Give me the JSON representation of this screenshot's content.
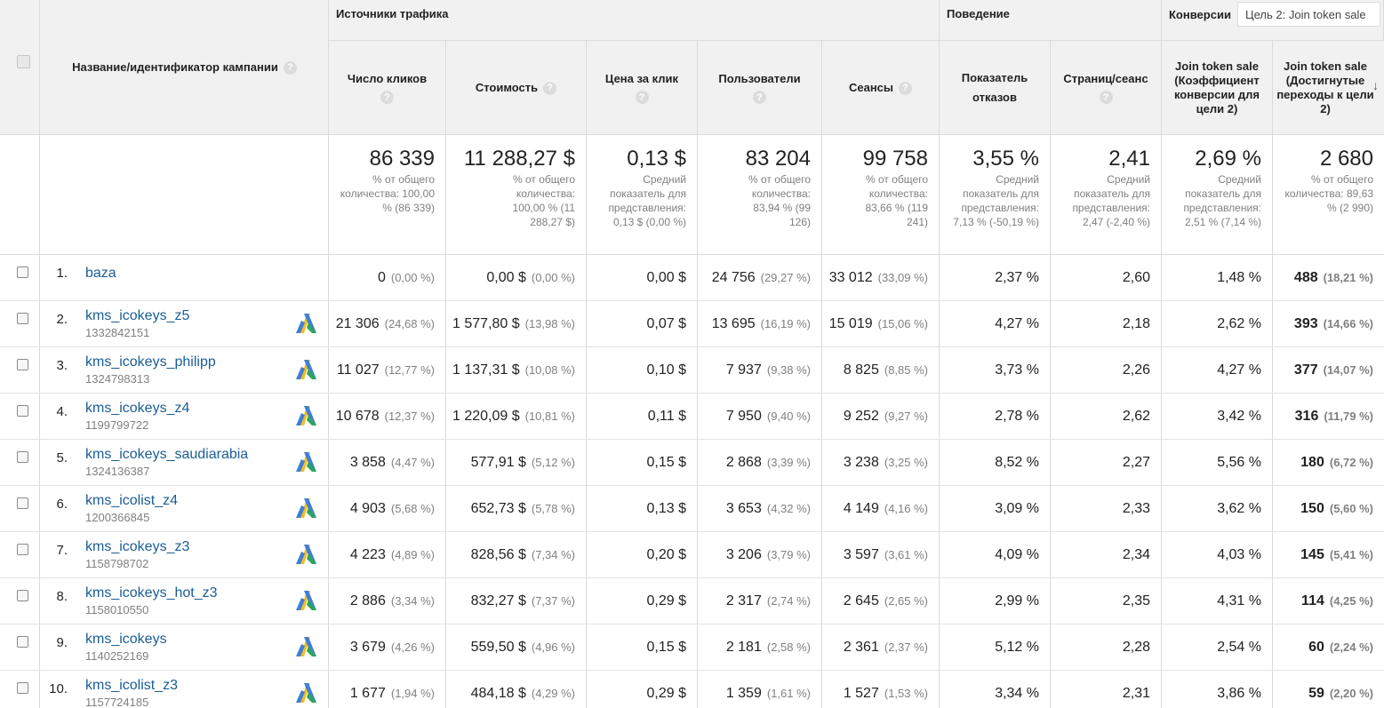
{
  "header": {
    "group_traffic": "Источники трафика",
    "group_behavior": "Поведение",
    "group_conversions": "Конверсии",
    "goal_select": "Цель 2: Join token sale",
    "help_glyph": "?",
    "sort_glyph": "↓",
    "columns": {
      "campaign": "Название/идентификатор кампании",
      "clicks": "Число кликов",
      "cost": "Стоимость",
      "cpc": "Цена за клик",
      "users": "Пользователи",
      "sessions": "Сеансы",
      "bounce": "Показатель отказов",
      "pages": "Страниц/сеанс",
      "conv_rate": "Join token sale (Коэффициент конверсии для цели 2)",
      "completions_a": "Join token sale",
      "completions_b": "(Достигнутые переходы к цели 2)"
    }
  },
  "totals": {
    "clicks": {
      "value": "86 339",
      "sub": "% от общего количества: 100,00 % (86 339)"
    },
    "cost": {
      "value": "11 288,27 $",
      "sub": "% от общего количества: 100,00 % (11 288,27 $)"
    },
    "cpc": {
      "value": "0,13 $",
      "sub": "Средний показатель для представления: 0,13 $ (0,00 %)"
    },
    "users": {
      "value": "83 204",
      "sub": "% от общего количества: 83,94 % (99 126)"
    },
    "sessions": {
      "value": "99 758",
      "sub": "% от общего количества: 83,66 % (119 241)"
    },
    "bounce": {
      "value": "3,55 %",
      "sub": "Средний показатель для представления: 7,13 % (-50,19 %)"
    },
    "pages": {
      "value": "2,41",
      "sub": "Средний показатель для представления: 2,47 (-2,40 %)"
    },
    "conv_rate": {
      "value": "2,69 %",
      "sub": "Средний показатель для представления: 2,51 % (7,14 %)"
    },
    "completions": {
      "value": "2 680",
      "sub": "% от общего количества: 89,63 % (2 990)"
    }
  },
  "rows": [
    {
      "num": "1.",
      "name": "baza",
      "id": "",
      "clicks": "0",
      "clicks_pct": "(0,00 %)",
      "cost": "0,00 $",
      "cost_pct": "(0,00 %)",
      "cpc": "0,00 $",
      "users": "24 756",
      "users_pct": "(29,27 %)",
      "sessions": "33 012",
      "sessions_pct": "(33,09 %)",
      "bounce": "2,37 %",
      "pages": "2,60",
      "conv": "1,48 %",
      "comp": "488",
      "comp_pct": "(18,21 %)",
      "ads": false
    },
    {
      "num": "2.",
      "name": "kms_icokeys_z5",
      "id": "1332842151",
      "clicks": "21 306",
      "clicks_pct": "(24,68 %)",
      "cost": "1 577,80 $",
      "cost_pct": "(13,98 %)",
      "cpc": "0,07 $",
      "users": "13 695",
      "users_pct": "(16,19 %)",
      "sessions": "15 019",
      "sessions_pct": "(15,06 %)",
      "bounce": "4,27 %",
      "pages": "2,18",
      "conv": "2,62 %",
      "comp": "393",
      "comp_pct": "(14,66 %)",
      "ads": true
    },
    {
      "num": "3.",
      "name": "kms_icokeys_philipp",
      "id": "1324798313",
      "clicks": "11 027",
      "clicks_pct": "(12,77 %)",
      "cost": "1 137,31 $",
      "cost_pct": "(10,08 %)",
      "cpc": "0,10 $",
      "users": "7 937",
      "users_pct": "(9,38 %)",
      "sessions": "8 825",
      "sessions_pct": "(8,85 %)",
      "bounce": "3,73 %",
      "pages": "2,26",
      "conv": "4,27 %",
      "comp": "377",
      "comp_pct": "(14,07 %)",
      "ads": true
    },
    {
      "num": "4.",
      "name": "kms_icokeys_z4",
      "id": "1199799722",
      "clicks": "10 678",
      "clicks_pct": "(12,37 %)",
      "cost": "1 220,09 $",
      "cost_pct": "(10,81 %)",
      "cpc": "0,11 $",
      "users": "7 950",
      "users_pct": "(9,40 %)",
      "sessions": "9 252",
      "sessions_pct": "(9,27 %)",
      "bounce": "2,78 %",
      "pages": "2,62",
      "conv": "3,42 %",
      "comp": "316",
      "comp_pct": "(11,79 %)",
      "ads": true
    },
    {
      "num": "5.",
      "name": "kms_icokeys_saudiarabia",
      "id": "1324136387",
      "clicks": "3 858",
      "clicks_pct": "(4,47 %)",
      "cost": "577,91 $",
      "cost_pct": "(5,12 %)",
      "cpc": "0,15 $",
      "users": "2 868",
      "users_pct": "(3,39 %)",
      "sessions": "3 238",
      "sessions_pct": "(3,25 %)",
      "bounce": "8,52 %",
      "pages": "2,27",
      "conv": "5,56 %",
      "comp": "180",
      "comp_pct": "(6,72 %)",
      "ads": true
    },
    {
      "num": "6.",
      "name": "kms_icolist_z4",
      "id": "1200366845",
      "clicks": "4 903",
      "clicks_pct": "(5,68 %)",
      "cost": "652,73 $",
      "cost_pct": "(5,78 %)",
      "cpc": "0,13 $",
      "users": "3 653",
      "users_pct": "(4,32 %)",
      "sessions": "4 149",
      "sessions_pct": "(4,16 %)",
      "bounce": "3,09 %",
      "pages": "2,33",
      "conv": "3,62 %",
      "comp": "150",
      "comp_pct": "(5,60 %)",
      "ads": true
    },
    {
      "num": "7.",
      "name": "kms_icokeys_z3",
      "id": "1158798702",
      "clicks": "4 223",
      "clicks_pct": "(4,89 %)",
      "cost": "828,56 $",
      "cost_pct": "(7,34 %)",
      "cpc": "0,20 $",
      "users": "3 206",
      "users_pct": "(3,79 %)",
      "sessions": "3 597",
      "sessions_pct": "(3,61 %)",
      "bounce": "4,09 %",
      "pages": "2,34",
      "conv": "4,03 %",
      "comp": "145",
      "comp_pct": "(5,41 %)",
      "ads": true
    },
    {
      "num": "8.",
      "name": "kms_icokeys_hot_z3",
      "id": "1158010550",
      "clicks": "2 886",
      "clicks_pct": "(3,34 %)",
      "cost": "832,27 $",
      "cost_pct": "(7,37 %)",
      "cpc": "0,29 $",
      "users": "2 317",
      "users_pct": "(2,74 %)",
      "sessions": "2 645",
      "sessions_pct": "(2,65 %)",
      "bounce": "2,99 %",
      "pages": "2,35",
      "conv": "4,31 %",
      "comp": "114",
      "comp_pct": "(4,25 %)",
      "ads": true
    },
    {
      "num": "9.",
      "name": "kms_icokeys",
      "id": "1140252169",
      "clicks": "3 679",
      "clicks_pct": "(4,26 %)",
      "cost": "559,50 $",
      "cost_pct": "(4,96 %)",
      "cpc": "0,15 $",
      "users": "2 181",
      "users_pct": "(2,58 %)",
      "sessions": "2 361",
      "sessions_pct": "(2,37 %)",
      "bounce": "5,12 %",
      "pages": "2,28",
      "conv": "2,54 %",
      "comp": "60",
      "comp_pct": "(2,24 %)",
      "ads": true
    },
    {
      "num": "10.",
      "name": "kms_icolist_z3",
      "id": "1157724185",
      "clicks": "1 677",
      "clicks_pct": "(1,94 %)",
      "cost": "484,18 $",
      "cost_pct": "(4,29 %)",
      "cpc": "0,29 $",
      "users": "1 359",
      "users_pct": "(1,61 %)",
      "sessions": "1 527",
      "sessions_pct": "(1,53 %)",
      "bounce": "3,34 %",
      "pages": "2,31",
      "conv": "3,86 %",
      "comp": "59",
      "comp_pct": "(2,20 %)",
      "ads": true
    }
  ],
  "icons": {
    "ads": "google-ads-icon",
    "help": "help-icon",
    "sort": "sort-desc-icon"
  },
  "colors": {
    "link": "#1a5d96",
    "header_bg": "#f1f1f1",
    "muted": "#808080",
    "ads_blue": "#3f7fd8",
    "ads_yellow": "#f6be1b",
    "ads_green": "#2fa55a"
  }
}
